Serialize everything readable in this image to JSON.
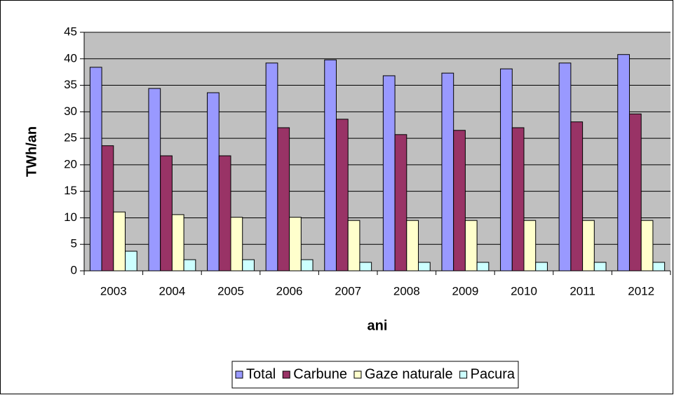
{
  "chart_data": {
    "type": "bar",
    "x_label": "ani",
    "y_label": "TWh/an",
    "categories": [
      "2003",
      "2004",
      "2005",
      "2006",
      "2007",
      "2008",
      "2009",
      "2010",
      "2011",
      "2012"
    ],
    "series": [
      {
        "name": "Total",
        "color": "#9999ff",
        "values": [
          38.4,
          34.4,
          33.6,
          39.2,
          39.8,
          36.8,
          37.3,
          38.1,
          39.2,
          40.8
        ]
      },
      {
        "name": "Carbune",
        "color": "#993366",
        "values": [
          23.6,
          21.7,
          21.7,
          27.0,
          28.6,
          25.7,
          26.5,
          27.0,
          28.1,
          29.6
        ]
      },
      {
        "name": "Gaze naturale",
        "color": "#ffffcc",
        "values": [
          11.1,
          10.6,
          10.1,
          10.1,
          9.5,
          9.5,
          9.5,
          9.5,
          9.5,
          9.5
        ]
      },
      {
        "name": "Pacura",
        "color": "#ccffff",
        "values": [
          3.7,
          2.1,
          2.1,
          2.1,
          1.6,
          1.6,
          1.6,
          1.6,
          1.6,
          1.6
        ]
      }
    ],
    "ylim": [
      0,
      45
    ],
    "yticks": [
      0,
      5,
      10,
      15,
      20,
      25,
      30,
      35,
      40,
      45
    ],
    "grid": true,
    "plot_background": "#c0c0c0",
    "legend": "bottom"
  }
}
